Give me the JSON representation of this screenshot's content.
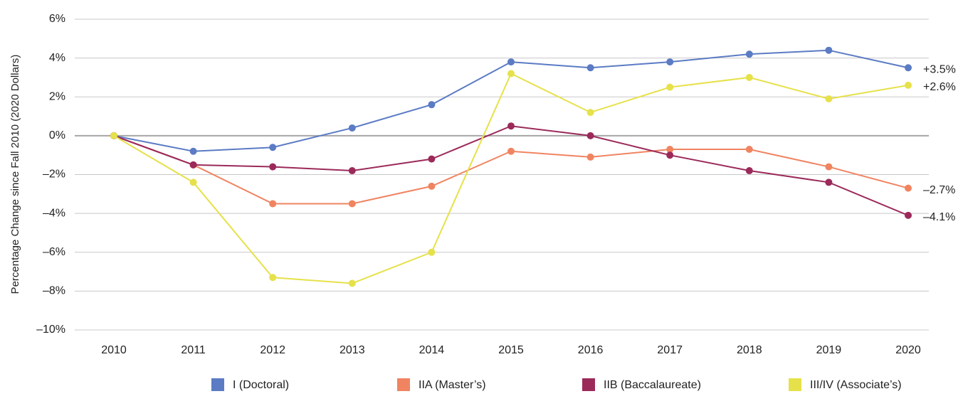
{
  "chart_data": {
    "type": "line",
    "y_label": "Percentage Change since Fall 2010 (2020 Dollars)",
    "categories": [
      "2010",
      "2011",
      "2012",
      "2013",
      "2014",
      "2015",
      "2016",
      "2017",
      "2018",
      "2019",
      "2020"
    ],
    "ylim": [
      -10,
      6
    ],
    "yticks": [
      {
        "value": -10,
        "label": "–10%"
      },
      {
        "value": -8,
        "label": "–8%"
      },
      {
        "value": -6,
        "label": "–6%"
      },
      {
        "value": -4,
        "label": "–4%"
      },
      {
        "value": -2,
        "label": "–2%"
      },
      {
        "value": 0,
        "label": "0%"
      },
      {
        "value": 2,
        "label": "2%"
      },
      {
        "value": 4,
        "label": "4%"
      },
      {
        "value": 6,
        "label": "6%"
      }
    ],
    "grid": true,
    "legend": "bottom",
    "series": [
      {
        "name": "I (Doctoral)",
        "color": "#5b7bc4",
        "values": [
          0,
          -0.8,
          -0.6,
          0.4,
          1.6,
          3.8,
          3.5,
          3.8,
          4.2,
          4.4,
          3.5
        ],
        "end_label": "+3.5%"
      },
      {
        "name": "IIA (Master’s)",
        "color": "#f08461",
        "values": [
          0,
          -1.5,
          -3.5,
          -3.5,
          -2.6,
          -0.8,
          -1.1,
          -0.7,
          -0.7,
          -1.6,
          -2.7
        ],
        "end_label": "–2.7%"
      },
      {
        "name": "IIB (Baccalaureate)",
        "color": "#9b2a5a",
        "values": [
          0,
          -1.5,
          -1.6,
          -1.8,
          -1.2,
          0.5,
          0,
          -1.0,
          -1.8,
          -2.4,
          -4.1
        ],
        "end_label": "–4.1%"
      },
      {
        "name": "III/IV (Associate’s)",
        "color": "#e6e14a",
        "values": [
          0,
          -2.4,
          -7.3,
          -7.6,
          -6.0,
          3.2,
          1.2,
          2.5,
          3.0,
          1.9,
          2.6
        ],
        "end_label": "+2.6%"
      }
    ]
  }
}
